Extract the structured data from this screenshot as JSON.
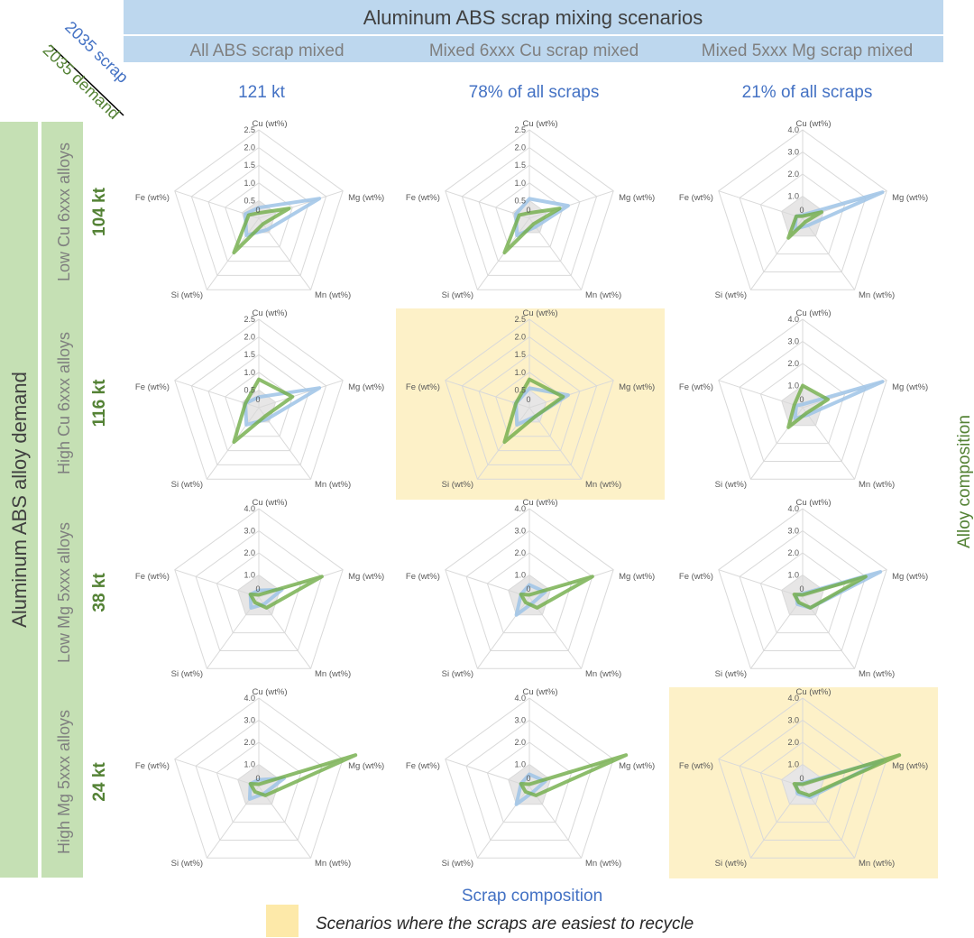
{
  "header": {
    "title": "Aluminum ABS scrap mixing scenarios",
    "columns": [
      "All ABS scrap mixed",
      "Mixed 6xxx Cu scrap mixed",
      "Mixed 5xxx Mg scrap mixed"
    ],
    "scrap_amounts": [
      "121 kt",
      "78% of all scraps",
      "21% of all scraps"
    ]
  },
  "corner": {
    "scrap_label": "2035 scrap",
    "demand_label": "2035 demand"
  },
  "side": {
    "title": "Aluminum ABS alloy demand",
    "rows": [
      "Low Cu 6xxx alloys",
      "High Cu 6xxx alloys",
      "Low Mg 5xxx alloys",
      "High Mg 5xxx alloys"
    ],
    "demand_amounts": [
      "104 kt",
      "116 kt",
      "38 kt",
      "24 kt"
    ]
  },
  "right_label": "Alloy composition",
  "bottom_label": "Scrap composition",
  "legend": {
    "text": "Scenarios where the scraps are easiest to recycle",
    "color": "#fde9a9"
  },
  "colors": {
    "scrap": "#9dc3e6",
    "demand": "#70ad47",
    "highlight": "#fdf1c8"
  },
  "chart_data": {
    "type": "radar",
    "axes": [
      "Cu (wt%)",
      "Mg (wt%)",
      "Mn (wt%)",
      "Si (wt%)",
      "Fe (wt%)"
    ],
    "series_names": [
      "2035 scrap",
      "2035 demand"
    ],
    "charts": [
      {
        "row": 0,
        "col": 0,
        "tick_labels": [
          "0",
          "0.5",
          "1.0",
          "1.5",
          "2.0",
          "2.5"
        ],
        "max": 2.5,
        "highlight": false,
        "scrap": [
          0.3,
          1.8,
          0.4,
          0.6,
          0.4
        ],
        "demand": [
          0.15,
          0.9,
          0.2,
          1.2,
          0.3
        ]
      },
      {
        "row": 0,
        "col": 1,
        "tick_labels": [
          "0",
          "0.5",
          "1.0",
          "1.5",
          "2.0",
          "2.5"
        ],
        "max": 2.5,
        "highlight": false,
        "scrap": [
          0.55,
          1.15,
          0.3,
          0.6,
          0.4
        ],
        "demand": [
          0.15,
          0.9,
          0.2,
          1.2,
          0.3
        ]
      },
      {
        "row": 0,
        "col": 2,
        "tick_labels": [
          "0",
          "1.0",
          "2.0",
          "3.0",
          "4.0"
        ],
        "max": 4.0,
        "highlight": false,
        "scrap": [
          0.15,
          3.8,
          0.4,
          0.6,
          0.3
        ],
        "demand": [
          0.1,
          0.9,
          0.2,
          1.1,
          0.3
        ]
      },
      {
        "row": 1,
        "col": 0,
        "tick_labels": [
          "0",
          "0.5",
          "1.0",
          "1.5",
          "2.0",
          "2.5"
        ],
        "max": 2.5,
        "highlight": false,
        "scrap": [
          0.3,
          1.8,
          0.4,
          0.6,
          0.4
        ],
        "demand": [
          0.8,
          1.0,
          0.3,
          1.2,
          0.4
        ]
      },
      {
        "row": 1,
        "col": 1,
        "tick_labels": [
          "0",
          "0.5",
          "1.0",
          "1.5",
          "2.0",
          "2.5"
        ],
        "max": 2.5,
        "highlight": true,
        "scrap": [
          0.55,
          1.15,
          0.3,
          0.6,
          0.4
        ],
        "demand": [
          0.8,
          1.0,
          0.3,
          1.2,
          0.4
        ]
      },
      {
        "row": 1,
        "col": 2,
        "tick_labels": [
          "0",
          "1.0",
          "2.0",
          "3.0",
          "4.0"
        ],
        "max": 4.0,
        "highlight": false,
        "scrap": [
          0.15,
          3.8,
          0.4,
          0.6,
          0.3
        ],
        "demand": [
          1.0,
          1.2,
          0.3,
          1.1,
          0.4
        ]
      },
      {
        "row": 2,
        "col": 0,
        "tick_labels": [
          "0",
          "1.0",
          "2.0",
          "3.0",
          "4.0"
        ],
        "max": 4.0,
        "highlight": false,
        "scrap": [
          0.3,
          1.1,
          0.4,
          0.6,
          0.4
        ],
        "demand": [
          0.1,
          3.0,
          0.6,
          0.3,
          0.4
        ]
      },
      {
        "row": 2,
        "col": 1,
        "tick_labels": [
          "0",
          "1.0",
          "2.0",
          "3.0",
          "4.0"
        ],
        "max": 4.0,
        "highlight": false,
        "scrap": [
          0.55,
          0.75,
          0.3,
          1.0,
          0.4
        ],
        "demand": [
          0.1,
          3.0,
          0.6,
          0.3,
          0.4
        ]
      },
      {
        "row": 2,
        "col": 2,
        "tick_labels": [
          "0",
          "1.0",
          "2.0",
          "3.0",
          "4.0"
        ],
        "max": 4.0,
        "highlight": false,
        "scrap": [
          0.15,
          3.7,
          0.6,
          0.4,
          0.3
        ],
        "demand": [
          0.1,
          3.0,
          0.6,
          0.3,
          0.4
        ]
      },
      {
        "row": 3,
        "col": 0,
        "tick_labels": [
          "0",
          "1.0",
          "2.0",
          "3.0",
          "4.0"
        ],
        "max": 4.0,
        "highlight": false,
        "scrap": [
          0.3,
          1.2,
          0.4,
          0.7,
          0.4
        ],
        "demand": [
          0.1,
          4.6,
          0.5,
          0.3,
          0.4
        ]
      },
      {
        "row": 3,
        "col": 1,
        "tick_labels": [
          "0",
          "1.0",
          "2.0",
          "3.0",
          "4.0"
        ],
        "max": 4.0,
        "highlight": false,
        "scrap": [
          0.55,
          0.75,
          0.3,
          1.0,
          0.4
        ],
        "demand": [
          0.1,
          4.6,
          0.5,
          0.3,
          0.4
        ]
      },
      {
        "row": 3,
        "col": 2,
        "tick_labels": [
          "0",
          "1.0",
          "2.0",
          "3.0",
          "4.0"
        ],
        "max": 4.0,
        "highlight": true,
        "scrap": [
          0.15,
          3.8,
          0.6,
          0.4,
          0.3
        ],
        "demand": [
          0.1,
          4.6,
          0.5,
          0.3,
          0.4
        ]
      }
    ]
  }
}
